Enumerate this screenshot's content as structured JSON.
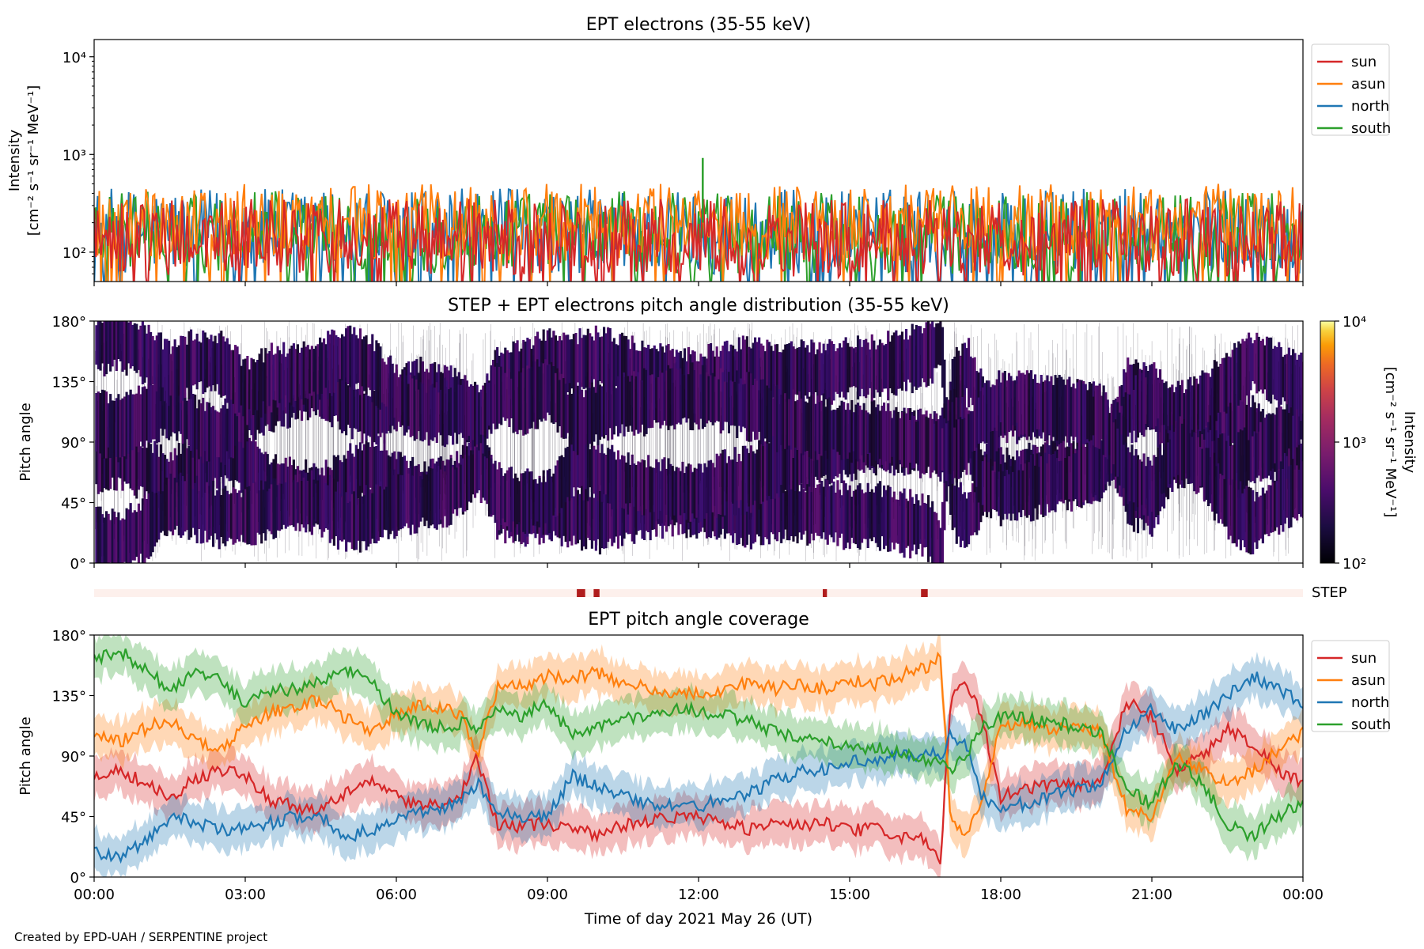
{
  "credit": "Created by EPD-UAH / SERPENTINE project",
  "chart_data": [
    {
      "type": "line",
      "title": "EPT electrons (35-55 keV)",
      "ylabel_line1": "Intensity",
      "ylabel_line2": "[cm⁻² s⁻¹ sr⁻¹ MeV⁻¹]",
      "yscale": "log",
      "ylim": [
        50,
        15000
      ],
      "yticks": [
        {
          "value": 100,
          "label": "10²"
        },
        {
          "value": 1000,
          "label": "10³"
        },
        {
          "value": 10000,
          "label": "10⁴"
        }
      ],
      "xlim": [
        "00:00",
        "24:00"
      ],
      "legend_position": "outside-right-top",
      "series": [
        {
          "name": "sun",
          "color": "#d62728",
          "typical_range": [
            55,
            350
          ]
        },
        {
          "name": "asun",
          "color": "#ff7f0e",
          "typical_range": [
            80,
            500
          ]
        },
        {
          "name": "north",
          "color": "#1f77b4",
          "typical_range": [
            60,
            450
          ]
        },
        {
          "name": "south",
          "color": "#2ca02c",
          "typical_range": [
            60,
            420
          ]
        }
      ],
      "annotations": [
        {
          "series": "south",
          "time": "12:05",
          "value": 920
        }
      ]
    },
    {
      "type": "heatmap",
      "title": "STEP + EPT electrons pitch angle distribution (35-55 keV)",
      "ylabel": "Pitch angle",
      "ylim": [
        0,
        180
      ],
      "yticks": [
        {
          "value": 0,
          "label": "0°"
        },
        {
          "value": 45,
          "label": "45°"
        },
        {
          "value": 90,
          "label": "90°"
        },
        {
          "value": 135,
          "label": "135°"
        },
        {
          "value": 180,
          "label": "180°"
        }
      ],
      "xlim": [
        "00:00",
        "24:00"
      ],
      "colorbar": {
        "label_line1": "Intensity",
        "label_line2": "[cm⁻² s⁻¹ sr⁻¹ MeV⁻¹]",
        "scale": "log",
        "range": [
          100,
          10000
        ],
        "ticks": [
          {
            "value": 100,
            "label": "10²"
          },
          {
            "value": 1000,
            "label": "10³"
          },
          {
            "value": 10000,
            "label": "10⁴"
          }
        ],
        "colormap": "inferno"
      },
      "typical_intensity": 200
    },
    {
      "type": "bar",
      "label": "STEP",
      "background_color": "#fdf0ec",
      "marker_color": "#b01c1c",
      "markers": [
        {
          "start": "09:35",
          "end": "09:45"
        },
        {
          "start": "09:55",
          "end": "10:02"
        },
        {
          "start": "14:28",
          "end": "14:33"
        },
        {
          "start": "16:25",
          "end": "16:33"
        }
      ]
    },
    {
      "type": "line",
      "title": "EPT pitch angle coverage",
      "ylabel": "Pitch angle",
      "xlabel": "Time of day 2021 May 26 (UT)",
      "ylim": [
        0,
        180
      ],
      "yticks": [
        {
          "value": 0,
          "label": "0°"
        },
        {
          "value": 45,
          "label": "45°"
        },
        {
          "value": 90,
          "label": "90°"
        },
        {
          "value": 135,
          "label": "135°"
        },
        {
          "value": 180,
          "label": "180°"
        }
      ],
      "xlim": [
        "00:00",
        "24:00"
      ],
      "xticks": [
        "00:00",
        "03:00",
        "06:00",
        "09:00",
        "12:00",
        "15:00",
        "18:00",
        "21:00",
        "00:00"
      ],
      "legend_position": "outside-right-top",
      "band_halfwidth_deg": 15,
      "series": [
        {
          "name": "sun",
          "color": "#d62728",
          "x": [
            0,
            0.5,
            1,
            1.5,
            2,
            2.5,
            3,
            3.5,
            4,
            4.5,
            5,
            5.5,
            6,
            6.5,
            7,
            7.3,
            7.6,
            8,
            8.5,
            9,
            9.5,
            10,
            10.5,
            11,
            11.5,
            12,
            12.5,
            13,
            13.5,
            14,
            14.5,
            15,
            15.5,
            16,
            16.5,
            16.8,
            17,
            17.3,
            17.6,
            18,
            18.5,
            19,
            19.5,
            20,
            20.5,
            21,
            21.5,
            22,
            22.5,
            23,
            23.5,
            24
          ],
          "y": [
            75,
            80,
            70,
            60,
            72,
            80,
            75,
            58,
            52,
            50,
            62,
            72,
            60,
            52,
            55,
            62,
            90,
            40,
            38,
            40,
            35,
            32,
            38,
            42,
            45,
            44,
            40,
            36,
            40,
            38,
            40,
            34,
            36,
            30,
            28,
            10,
            130,
            145,
            120,
            60,
            65,
            70,
            68,
            72,
            130,
            120,
            80,
            90,
            110,
            100,
            80,
            70
          ]
        },
        {
          "name": "asun",
          "color": "#ff7f0e",
          "x": [
            0,
            0.5,
            1,
            1.5,
            2,
            2.5,
            3,
            3.5,
            4,
            4.5,
            5,
            5.5,
            6,
            6.5,
            7,
            7.3,
            7.6,
            8,
            8.5,
            9,
            9.5,
            10,
            10.5,
            11,
            11.5,
            12,
            12.5,
            13,
            13.5,
            14,
            14.5,
            15,
            15.5,
            16,
            16.5,
            16.8,
            17,
            17.3,
            17.6,
            18,
            18.5,
            19,
            19.5,
            20,
            20.5,
            21,
            21.5,
            22,
            22.5,
            23,
            23.5,
            24
          ],
          "y": [
            105,
            100,
            110,
            118,
            100,
            95,
            112,
            122,
            128,
            132,
            118,
            108,
            122,
            128,
            125,
            118,
            90,
            140,
            142,
            150,
            148,
            152,
            145,
            140,
            136,
            136,
            140,
            145,
            140,
            143,
            140,
            146,
            144,
            150,
            155,
            165,
            45,
            30,
            55,
            112,
            115,
            110,
            112,
            108,
            50,
            45,
            90,
            80,
            70,
            78,
            95,
            108
          ]
        },
        {
          "name": "north",
          "color": "#1f77b4",
          "x": [
            0,
            0.5,
            1,
            1.5,
            2,
            2.5,
            3,
            3.5,
            4,
            4.5,
            5,
            5.5,
            6,
            6.5,
            7,
            7.3,
            7.6,
            8,
            8.5,
            9,
            9.5,
            10,
            10.5,
            11,
            11.5,
            12,
            12.5,
            13,
            13.5,
            14,
            14.5,
            15,
            15.5,
            16,
            16.5,
            16.8,
            17,
            17.3,
            17.6,
            18,
            18.5,
            19,
            19.5,
            20,
            20.5,
            21,
            21.5,
            22,
            22.5,
            23,
            23.5,
            24
          ],
          "y": [
            18,
            15,
            25,
            45,
            40,
            35,
            35,
            40,
            45,
            45,
            30,
            35,
            45,
            48,
            52,
            58,
            70,
            50,
            45,
            45,
            75,
            68,
            60,
            55,
            52,
            52,
            60,
            62,
            72,
            78,
            80,
            85,
            88,
            90,
            92,
            90,
            105,
            100,
            60,
            50,
            55,
            60,
            65,
            70,
            110,
            125,
            110,
            120,
            135,
            150,
            140,
            130
          ]
        },
        {
          "name": "south",
          "color": "#2ca02c",
          "x": [
            0,
            0.5,
            1,
            1.5,
            2,
            2.5,
            3,
            3.5,
            4,
            4.5,
            5,
            5.5,
            6,
            6.5,
            7,
            7.3,
            7.6,
            8,
            8.5,
            9,
            9.5,
            10,
            10.5,
            11,
            11.5,
            12,
            12.5,
            13,
            13.5,
            14,
            14.5,
            15,
            15.5,
            16,
            16.5,
            16.8,
            17,
            17.3,
            17.6,
            18,
            18.5,
            19,
            19.5,
            20,
            20.5,
            21,
            21.5,
            22,
            22.5,
            23,
            23.5,
            24
          ],
          "y": [
            162,
            168,
            155,
            140,
            150,
            148,
            128,
            138,
            140,
            145,
            155,
            145,
            122,
            112,
            112,
            115,
            110,
            125,
            120,
            130,
            105,
            112,
            118,
            120,
            124,
            124,
            120,
            116,
            108,
            102,
            100,
            98,
            96,
            92,
            88,
            85,
            80,
            90,
            110,
            120,
            118,
            115,
            112,
            108,
            65,
            55,
            85,
            70,
            40,
            30,
            45,
            55
          ]
        }
      ]
    }
  ]
}
